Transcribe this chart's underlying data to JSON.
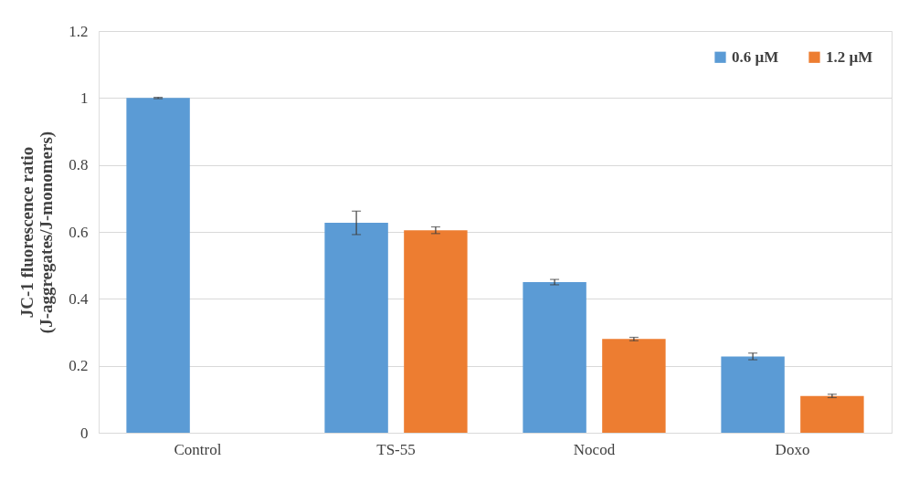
{
  "chart_data": {
    "type": "bar",
    "ylabel": "JC-1 fluorescence ratio\n(J-aggregates/J-monomers)",
    "categories": [
      "Control",
      "TS-55",
      "Nocod",
      "Doxo"
    ],
    "series": [
      {
        "name": "0.6 µM",
        "color": "#5b9bd5",
        "values": [
          1.0,
          0.627,
          0.45,
          0.228
        ],
        "errors": [
          0.002,
          0.035,
          0.008,
          0.01
        ]
      },
      {
        "name": "1.2 µM",
        "color": "#ed7d31",
        "values": [
          null,
          0.605,
          0.28,
          0.11
        ],
        "errors": [
          null,
          0.01,
          0.005,
          0.005
        ]
      }
    ],
    "ylim": [
      0,
      1.2
    ],
    "yticks": [
      0,
      0.2,
      0.4,
      0.6,
      0.8,
      1,
      1.2
    ],
    "grid": "y",
    "legend": "top right"
  }
}
